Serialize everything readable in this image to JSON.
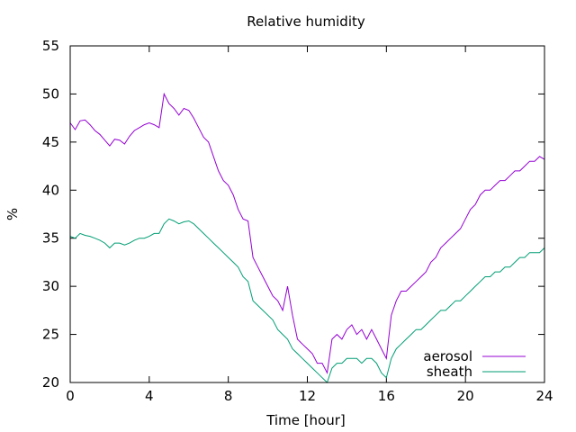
{
  "chart_data": {
    "type": "line",
    "title": "Relative humidity",
    "xlabel": "Time [hour]",
    "ylabel": "%",
    "xlim": [
      0,
      24
    ],
    "ylim": [
      20,
      55
    ],
    "xticks": [
      0,
      4,
      8,
      12,
      16,
      20,
      24
    ],
    "yticks": [
      20,
      25,
      30,
      35,
      40,
      45,
      50,
      55
    ],
    "grid": false,
    "legend_position": "bottom-right",
    "series": [
      {
        "name": "aerosol",
        "color": "#9400d3",
        "points": [
          [
            0,
            47.0
          ],
          [
            0.25,
            46.3
          ],
          [
            0.5,
            47.2
          ],
          [
            0.75,
            47.3
          ],
          [
            1,
            46.8
          ],
          [
            1.25,
            46.2
          ],
          [
            1.5,
            45.8
          ],
          [
            1.75,
            45.2
          ],
          [
            2,
            44.6
          ],
          [
            2.25,
            45.3
          ],
          [
            2.5,
            45.2
          ],
          [
            2.75,
            44.8
          ],
          [
            3,
            45.6
          ],
          [
            3.25,
            46.2
          ],
          [
            3.5,
            46.5
          ],
          [
            3.75,
            46.8
          ],
          [
            4,
            47.0
          ],
          [
            4.25,
            46.8
          ],
          [
            4.5,
            46.5
          ],
          [
            4.75,
            50.0
          ],
          [
            5,
            49.0
          ],
          [
            5.25,
            48.5
          ],
          [
            5.5,
            47.8
          ],
          [
            5.75,
            48.5
          ],
          [
            6,
            48.3
          ],
          [
            6.25,
            47.5
          ],
          [
            6.5,
            46.5
          ],
          [
            6.75,
            45.5
          ],
          [
            7,
            45.0
          ],
          [
            7.25,
            43.5
          ],
          [
            7.5,
            42.0
          ],
          [
            7.75,
            41.0
          ],
          [
            8,
            40.5
          ],
          [
            8.25,
            39.5
          ],
          [
            8.5,
            38.0
          ],
          [
            8.75,
            37.0
          ],
          [
            9,
            36.8
          ],
          [
            9.25,
            33.0
          ],
          [
            9.5,
            32.0
          ],
          [
            9.75,
            31.0
          ],
          [
            10,
            30.0
          ],
          [
            10.25,
            29.0
          ],
          [
            10.5,
            28.5
          ],
          [
            10.75,
            27.5
          ],
          [
            11,
            30.0
          ],
          [
            11.25,
            27.0
          ],
          [
            11.5,
            24.5
          ],
          [
            11.75,
            24.0
          ],
          [
            12,
            23.5
          ],
          [
            12.25,
            23.0
          ],
          [
            12.5,
            22.0
          ],
          [
            12.75,
            22.0
          ],
          [
            13,
            21.0
          ],
          [
            13.25,
            24.5
          ],
          [
            13.5,
            25.0
          ],
          [
            13.75,
            24.5
          ],
          [
            14,
            25.5
          ],
          [
            14.25,
            26.0
          ],
          [
            14.5,
            25.0
          ],
          [
            14.75,
            25.5
          ],
          [
            15,
            24.5
          ],
          [
            15.25,
            25.5
          ],
          [
            15.5,
            24.5
          ],
          [
            15.75,
            23.5
          ],
          [
            16,
            22.5
          ],
          [
            16.25,
            27.0
          ],
          [
            16.5,
            28.5
          ],
          [
            16.75,
            29.5
          ],
          [
            17,
            29.5
          ],
          [
            17.25,
            30.0
          ],
          [
            17.5,
            30.5
          ],
          [
            17.75,
            31.0
          ],
          [
            18,
            31.5
          ],
          [
            18.25,
            32.5
          ],
          [
            18.5,
            33.0
          ],
          [
            18.75,
            34.0
          ],
          [
            19,
            34.5
          ],
          [
            19.25,
            35.0
          ],
          [
            19.5,
            35.5
          ],
          [
            19.75,
            36.0
          ],
          [
            20,
            37.0
          ],
          [
            20.25,
            38.0
          ],
          [
            20.5,
            38.5
          ],
          [
            20.75,
            39.5
          ],
          [
            21,
            40.0
          ],
          [
            21.25,
            40.0
          ],
          [
            21.5,
            40.5
          ],
          [
            21.75,
            41.0
          ],
          [
            22,
            41.0
          ],
          [
            22.25,
            41.5
          ],
          [
            22.5,
            42.0
          ],
          [
            22.75,
            42.0
          ],
          [
            23,
            42.5
          ],
          [
            23.25,
            43.0
          ],
          [
            23.5,
            43.0
          ],
          [
            23.75,
            43.5
          ],
          [
            24,
            43.2
          ]
        ]
      },
      {
        "name": "sheath",
        "color": "#009e73",
        "points": [
          [
            0,
            35.2
          ],
          [
            0.25,
            35.0
          ],
          [
            0.5,
            35.5
          ],
          [
            0.75,
            35.3
          ],
          [
            1,
            35.2
          ],
          [
            1.25,
            35.0
          ],
          [
            1.5,
            34.8
          ],
          [
            1.75,
            34.5
          ],
          [
            2,
            34.0
          ],
          [
            2.25,
            34.5
          ],
          [
            2.5,
            34.5
          ],
          [
            2.75,
            34.3
          ],
          [
            3,
            34.5
          ],
          [
            3.25,
            34.8
          ],
          [
            3.5,
            35.0
          ],
          [
            3.75,
            35.0
          ],
          [
            4,
            35.2
          ],
          [
            4.25,
            35.5
          ],
          [
            4.5,
            35.5
          ],
          [
            4.75,
            36.5
          ],
          [
            5,
            37.0
          ],
          [
            5.25,
            36.8
          ],
          [
            5.5,
            36.5
          ],
          [
            5.75,
            36.7
          ],
          [
            6,
            36.8
          ],
          [
            6.25,
            36.5
          ],
          [
            6.5,
            36.0
          ],
          [
            6.75,
            35.5
          ],
          [
            7,
            35.0
          ],
          [
            7.25,
            34.5
          ],
          [
            7.5,
            34.0
          ],
          [
            7.75,
            33.5
          ],
          [
            8,
            33.0
          ],
          [
            8.25,
            32.5
          ],
          [
            8.5,
            32.0
          ],
          [
            8.75,
            31.0
          ],
          [
            9,
            30.5
          ],
          [
            9.25,
            28.5
          ],
          [
            9.5,
            28.0
          ],
          [
            9.75,
            27.5
          ],
          [
            10,
            27.0
          ],
          [
            10.25,
            26.5
          ],
          [
            10.5,
            25.5
          ],
          [
            10.75,
            25.0
          ],
          [
            11,
            24.5
          ],
          [
            11.25,
            23.5
          ],
          [
            11.5,
            23.0
          ],
          [
            11.75,
            22.5
          ],
          [
            12,
            22.0
          ],
          [
            12.25,
            21.5
          ],
          [
            12.5,
            21.0
          ],
          [
            12.75,
            20.5
          ],
          [
            13,
            20.0
          ],
          [
            13.25,
            21.5
          ],
          [
            13.5,
            22.0
          ],
          [
            13.75,
            22.0
          ],
          [
            14,
            22.5
          ],
          [
            14.25,
            22.5
          ],
          [
            14.5,
            22.5
          ],
          [
            14.75,
            22.0
          ],
          [
            15,
            22.5
          ],
          [
            15.25,
            22.5
          ],
          [
            15.5,
            22.0
          ],
          [
            15.75,
            21.0
          ],
          [
            16,
            20.5
          ],
          [
            16.25,
            22.5
          ],
          [
            16.5,
            23.5
          ],
          [
            16.75,
            24.0
          ],
          [
            17,
            24.5
          ],
          [
            17.25,
            25.0
          ],
          [
            17.5,
            25.5
          ],
          [
            17.75,
            25.5
          ],
          [
            18,
            26.0
          ],
          [
            18.25,
            26.5
          ],
          [
            18.5,
            27.0
          ],
          [
            18.75,
            27.5
          ],
          [
            19,
            27.5
          ],
          [
            19.25,
            28.0
          ],
          [
            19.5,
            28.5
          ],
          [
            19.75,
            28.5
          ],
          [
            20,
            29.0
          ],
          [
            20.25,
            29.5
          ],
          [
            20.5,
            30.0
          ],
          [
            20.75,
            30.5
          ],
          [
            21,
            31.0
          ],
          [
            21.25,
            31.0
          ],
          [
            21.5,
            31.5
          ],
          [
            21.75,
            31.5
          ],
          [
            22,
            32.0
          ],
          [
            22.25,
            32.0
          ],
          [
            22.5,
            32.5
          ],
          [
            22.75,
            33.0
          ],
          [
            23,
            33.0
          ],
          [
            23.25,
            33.5
          ],
          [
            23.5,
            33.5
          ],
          [
            23.75,
            33.5
          ],
          [
            24,
            34.0
          ]
        ]
      }
    ]
  }
}
